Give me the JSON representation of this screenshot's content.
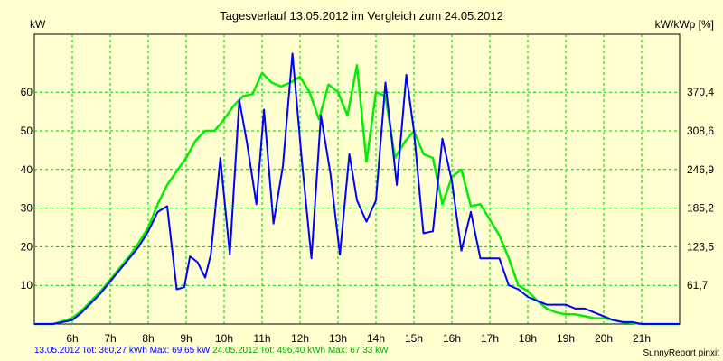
{
  "chart_data": {
    "type": "line",
    "title": "Tagesverlauf 13.05.2012 im Vergleich zum 24.05.2012",
    "ylabel": "kW",
    "y2label": "kW/kWp [%]",
    "ylim": [
      0,
      75
    ],
    "y_ticks": [
      10,
      20,
      30,
      40,
      50,
      60
    ],
    "y2_ticks": [
      "61,7",
      "123,5",
      "185,2",
      "246,9",
      "308,6",
      "370,4"
    ],
    "x_range_hours": [
      5,
      22
    ],
    "x_ticks": [
      "6h",
      "7h",
      "8h",
      "9h",
      "10h",
      "11h",
      "12h",
      "13h",
      "14h",
      "15h",
      "16h",
      "17h",
      "18h",
      "19h",
      "20h",
      "21h"
    ],
    "grid": true,
    "colors": {
      "background": "#ffffd0",
      "grid": "#00c000",
      "series1": "#0000ff",
      "series2": "#00ee00"
    },
    "series": [
      {
        "name": "13.05.2012",
        "color": "#0000ff",
        "x": [
          5.0,
          5.5,
          6.0,
          6.25,
          6.5,
          6.75,
          7.0,
          7.25,
          7.5,
          7.75,
          8.0,
          8.25,
          8.5,
          8.75,
          8.95,
          9.1,
          9.3,
          9.5,
          9.65,
          9.9,
          10.15,
          10.4,
          10.6,
          10.85,
          11.05,
          11.3,
          11.55,
          11.8,
          12.05,
          12.3,
          12.55,
          12.8,
          13.05,
          13.3,
          13.5,
          13.75,
          14.0,
          14.25,
          14.55,
          14.8,
          15.0,
          15.25,
          15.5,
          15.75,
          16.0,
          16.25,
          16.5,
          16.75,
          17.0,
          17.25,
          17.5,
          17.75,
          18.0,
          18.25,
          18.5,
          18.75,
          19.0,
          19.25,
          19.5,
          19.75,
          20.0,
          20.25,
          20.5,
          20.75,
          21.0,
          21.25,
          21.5,
          22.0
        ],
        "y": [
          0,
          0,
          1,
          3,
          5.5,
          8,
          11,
          14,
          17,
          20,
          24,
          29,
          30.5,
          9,
          9.5,
          17.5,
          16,
          12,
          18,
          43,
          18,
          58,
          47,
          31,
          55.5,
          26,
          41,
          70,
          42,
          17,
          54,
          39,
          18,
          44,
          32,
          26.5,
          32,
          62.5,
          36,
          64.5,
          50,
          23.5,
          24,
          48,
          37,
          19,
          29,
          17,
          17,
          17,
          10,
          9,
          7,
          6,
          5,
          5,
          5,
          4,
          4,
          3,
          2,
          1,
          0.5,
          0.5,
          0,
          0,
          0,
          0
        ]
      },
      {
        "name": "24.05.2012",
        "color": "#00ee00",
        "x": [
          5.0,
          5.5,
          6.0,
          6.25,
          6.5,
          6.75,
          7.0,
          7.25,
          7.5,
          7.75,
          8.0,
          8.25,
          8.5,
          8.75,
          9.0,
          9.25,
          9.5,
          9.75,
          10.0,
          10.25,
          10.5,
          10.75,
          11.0,
          11.25,
          11.5,
          11.75,
          12.0,
          12.25,
          12.5,
          12.75,
          13.0,
          13.25,
          13.5,
          13.75,
          14.0,
          14.25,
          14.5,
          14.75,
          15.0,
          15.25,
          15.5,
          15.75,
          16.0,
          16.25,
          16.5,
          16.75,
          17.0,
          17.25,
          17.5,
          17.75,
          18.0,
          18.25,
          18.5,
          18.75,
          19.0,
          19.25,
          19.5,
          19.75,
          20.0,
          20.25,
          20.5,
          20.75,
          21.0,
          21.25,
          21.5,
          22.0
        ],
        "y": [
          0,
          0,
          1.5,
          3.5,
          6,
          8.5,
          11.5,
          14.5,
          17.5,
          21,
          25,
          31,
          36,
          39.5,
          43,
          47.5,
          50,
          50,
          53,
          56.5,
          59,
          59.5,
          65,
          62.5,
          61.5,
          62.5,
          64,
          60,
          53,
          62,
          60,
          54,
          67,
          42,
          60,
          59,
          43,
          47,
          50,
          44,
          43,
          31,
          38,
          40,
          30.5,
          31,
          27,
          23,
          17,
          10,
          8.5,
          6,
          4,
          3,
          2.5,
          2.5,
          2,
          1.5,
          1.5,
          1,
          0.5,
          0.3,
          0,
          0,
          0,
          0
        ]
      }
    ]
  },
  "footer": {
    "series1_text": "13.05.2012 Tot: 360,27 kWh Max: 69,65 kW",
    "series2_text": "24.05.2012 Tot: 496,40 kWh Max: 67,33 kW",
    "credit": "SunnyReport pinxit"
  }
}
